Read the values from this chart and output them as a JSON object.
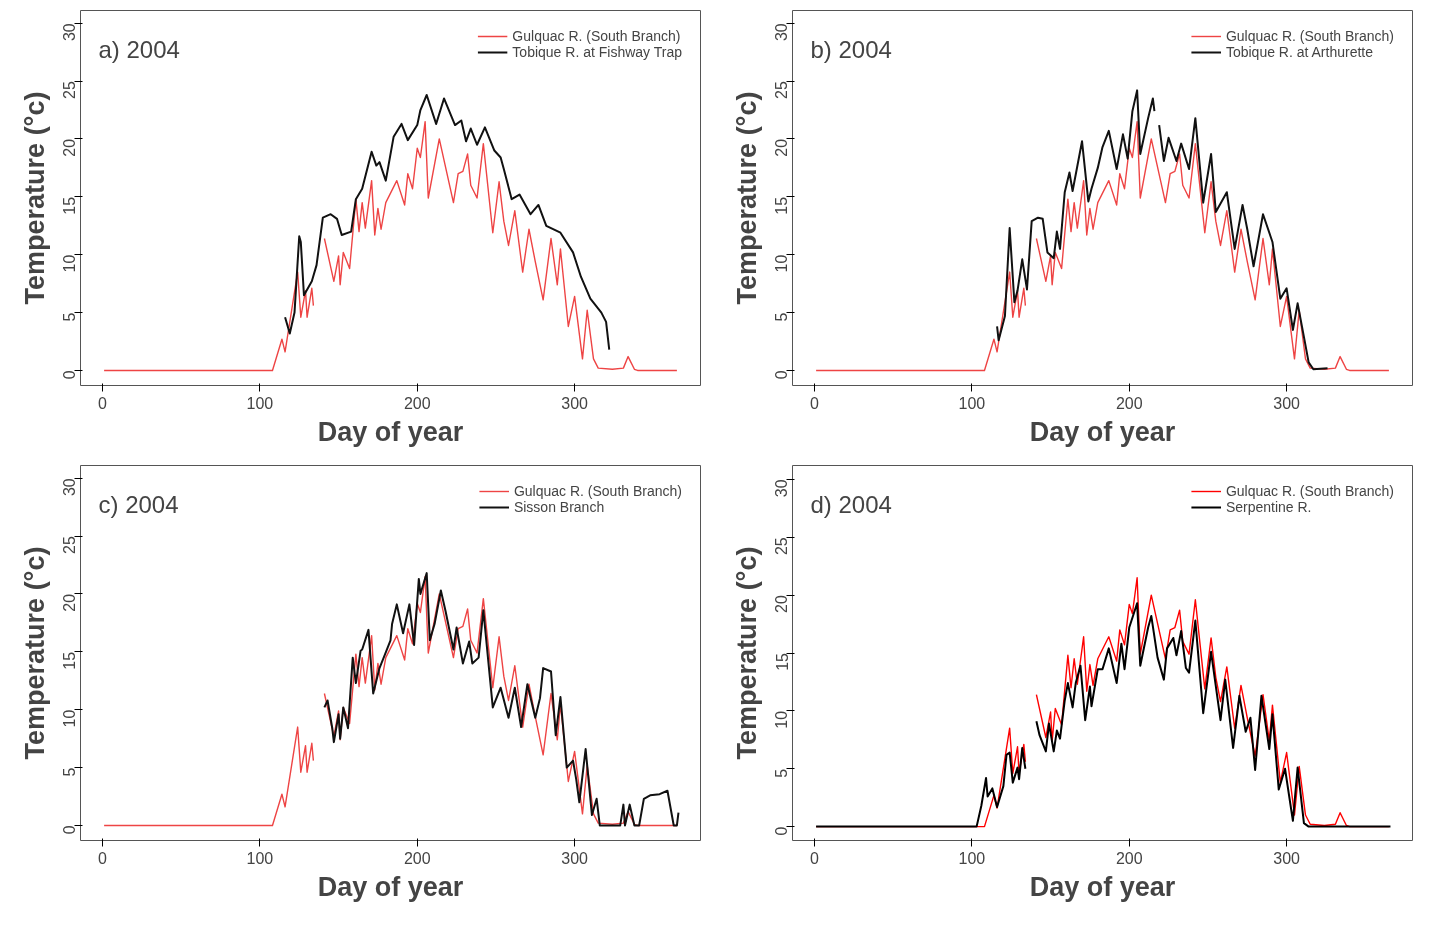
{
  "chart_data": [
    {
      "type": "line",
      "title": "a) 2004",
      "xlabel": "Day of year",
      "ylabel": "Temperature (°c)",
      "xlim": [
        -14,
        380
      ],
      "ylim": [
        -1.3,
        31.1
      ],
      "xticks": [
        0,
        100,
        200,
        300
      ],
      "yticks": [
        0,
        5,
        10,
        15,
        20,
        25,
        30
      ],
      "grid": false,
      "legend": "top right",
      "series": [
        {
          "name": "Gulquac R. (South Branch)",
          "color": "#ee4444",
          "x": [
            1,
            108,
            114,
            116,
            124,
            126,
            129,
            130,
            133,
            134,
            137,
            141,
            147,
            150,
            151,
            153,
            157,
            161,
            163,
            165,
            167,
            171,
            173,
            175,
            177,
            180,
            187,
            192,
            194,
            197,
            200,
            202,
            205,
            207,
            214,
            223,
            226,
            229,
            232,
            234,
            238,
            242,
            248,
            252,
            255,
            258,
            262,
            267,
            271,
            275,
            280,
            285,
            289,
            291,
            296,
            300,
            305,
            308,
            312,
            315,
            324,
            331,
            334,
            338,
            340,
            365
          ],
          "values": [
            0,
            0,
            2.7,
            1.6,
            8.5,
            4.6,
            6.9,
            4.6,
            7.1,
            5.6,
            null,
            11.4,
            7.7,
            9.9,
            7.4,
            10.2,
            8.8,
            14.8,
            12.0,
            14.5,
            12.3,
            16.4,
            11.7,
            14.0,
            12.2,
            14.5,
            16.4,
            14.3,
            17.0,
            15.7,
            19.2,
            18.4,
            21.5,
            14.9,
            20.0,
            14.5,
            17.0,
            17.2,
            18.7,
            16.0,
            14.9,
            19.6,
            11.9,
            16.3,
            12.9,
            10.8,
            13.8,
            8.5,
            12.2,
            9.4,
            6.1,
            11.4,
            7.4,
            10.5,
            3.8,
            6.4,
            1.0,
            5.2,
            1.0,
            0.2,
            0.1,
            0.2,
            1.2,
            0.1,
            0,
            0
          ]
        },
        {
          "name": "Tobique R. at Fishway Trap",
          "color": "#111111",
          "x": [
            116,
            119,
            122,
            125,
            126,
            128,
            133,
            136,
            140,
            145,
            149,
            152,
            158,
            161,
            165,
            171,
            174,
            176,
            180,
            185,
            190,
            194,
            200,
            202,
            206,
            212,
            217,
            224,
            228,
            231,
            234,
            238,
            243,
            249,
            253,
            255,
            260,
            265,
            272,
            277,
            282,
            291,
            299,
            304,
            310,
            317,
            320,
            322
          ],
          "values": [
            4.6,
            3.2,
            5.0,
            11.6,
            11.1,
            6.5,
            7.7,
            9.1,
            13.2,
            13.5,
            13.1,
            11.7,
            12.0,
            14.8,
            15.7,
            18.9,
            17.7,
            18.0,
            16.4,
            20.2,
            21.3,
            19.9,
            21.2,
            22.5,
            23.8,
            21.3,
            23.5,
            21.2,
            21.6,
            19.8,
            20.9,
            19.5,
            21.0,
            19.0,
            18.4,
            17.4,
            14.8,
            15.2,
            13.5,
            14.3,
            12.5,
            11.9,
            10.2,
            8.1,
            6.2,
            5.0,
            4.2,
            1.8
          ]
        }
      ]
    },
    {
      "type": "line",
      "title": "b) 2004",
      "xlabel": "Day of year",
      "ylabel": "Temperature (°c)",
      "xlim": [
        -14,
        380
      ],
      "ylim": [
        -1.3,
        31.1
      ],
      "xticks": [
        0,
        100,
        200,
        300
      ],
      "yticks": [
        0,
        5,
        10,
        15,
        20,
        25,
        30
      ],
      "grid": false,
      "legend": "top right",
      "series": [
        {
          "name": "Gulquac R. (South Branch)",
          "color": "#ee4444",
          "x": [
            1,
            108,
            114,
            116,
            124,
            126,
            129,
            130,
            133,
            134,
            137,
            141,
            147,
            150,
            151,
            153,
            157,
            161,
            163,
            165,
            167,
            171,
            173,
            175,
            177,
            180,
            187,
            192,
            194,
            197,
            200,
            202,
            205,
            207,
            214,
            223,
            226,
            229,
            232,
            234,
            238,
            242,
            248,
            252,
            255,
            258,
            262,
            267,
            271,
            275,
            280,
            285,
            289,
            291,
            296,
            300,
            305,
            308,
            312,
            315,
            324,
            331,
            334,
            338,
            340,
            365
          ],
          "values": [
            0,
            0,
            2.7,
            1.6,
            8.5,
            4.6,
            6.9,
            4.6,
            7.1,
            5.6,
            null,
            11.4,
            7.7,
            9.9,
            7.4,
            10.2,
            8.8,
            14.8,
            12.0,
            14.5,
            12.3,
            16.4,
            11.7,
            14.0,
            12.2,
            14.5,
            16.4,
            14.3,
            17.0,
            15.7,
            19.2,
            18.4,
            21.5,
            14.9,
            20.0,
            14.5,
            17.0,
            17.2,
            18.7,
            16.0,
            14.9,
            19.6,
            11.9,
            16.3,
            12.9,
            10.8,
            13.8,
            8.5,
            12.2,
            9.4,
            6.1,
            11.4,
            7.4,
            10.5,
            3.8,
            6.4,
            1.0,
            5.2,
            1.0,
            0.2,
            0.1,
            0.2,
            1.2,
            0.1,
            0,
            0
          ]
        },
        {
          "name": "Tobique R. at Arthurette",
          "color": "#111111",
          "x": [
            116,
            117,
            121,
            124,
            127,
            129,
            132,
            135,
            138,
            142,
            145,
            148,
            152,
            154,
            156,
            159,
            162,
            164,
            170,
            174,
            176,
            180,
            183,
            187,
            192,
            196,
            199,
            202,
            205,
            207,
            212,
            215,
            216,
            217,
            219,
            222,
            225,
            230,
            233,
            238,
            242,
            247,
            252,
            255,
            262,
            267,
            272,
            275,
            279,
            285,
            291,
            296,
            300,
            304,
            307,
            311,
            314,
            317,
            326
          ],
          "values": [
            3.8,
            2.6,
            4.7,
            12.3,
            5.9,
            6.9,
            9.6,
            7.0,
            12.9,
            13.2,
            13.1,
            10.2,
            9.7,
            12.0,
            10.5,
            15.4,
            17.1,
            15.5,
            19.8,
            14.6,
            15.7,
            17.5,
            19.3,
            20.7,
            17.4,
            20.4,
            18.3,
            22.4,
            24.2,
            18.7,
            21.8,
            23.5,
            22.4,
            null,
            21.2,
            18.1,
            20.1,
            18.1,
            19.6,
            17.4,
            21.8,
            14.5,
            18.7,
            13.7,
            15.4,
            10.5,
            14.3,
            12.2,
            9.0,
            13.5,
            11.1,
            6.2,
            7.1,
            3.5,
            5.8,
            2.9,
            0.7,
            0.1,
            0.2
          ]
        }
      ]
    },
    {
      "type": "line",
      "title": "c) 2004",
      "xlabel": "Day of year",
      "ylabel": "Temperature (°c)",
      "xlim": [
        -14,
        380
      ],
      "ylim": [
        -1.3,
        31.1
      ],
      "xticks": [
        0,
        100,
        200,
        300
      ],
      "yticks": [
        0,
        5,
        10,
        15,
        20,
        25,
        30
      ],
      "grid": false,
      "legend": "top right",
      "series": [
        {
          "name": "Gulquac R. (South Branch)",
          "color": "#ee4444",
          "x": [
            1,
            108,
            114,
            116,
            124,
            126,
            129,
            130,
            133,
            134,
            137,
            141,
            147,
            150,
            151,
            153,
            157,
            161,
            163,
            165,
            167,
            171,
            173,
            175,
            177,
            180,
            187,
            192,
            194,
            197,
            200,
            202,
            205,
            207,
            214,
            223,
            226,
            229,
            232,
            234,
            238,
            242,
            248,
            252,
            255,
            258,
            262,
            267,
            271,
            275,
            280,
            285,
            289,
            291,
            296,
            300,
            305,
            308,
            312,
            315,
            324,
            331,
            334,
            338,
            340,
            365
          ],
          "values": [
            0,
            0,
            2.7,
            1.6,
            8.5,
            4.6,
            6.9,
            4.6,
            7.1,
            5.6,
            null,
            11.4,
            7.7,
            9.9,
            7.4,
            10.2,
            8.8,
            14.8,
            12.0,
            14.5,
            12.3,
            16.4,
            11.7,
            14.0,
            12.2,
            14.5,
            16.4,
            14.3,
            17.0,
            15.7,
            19.2,
            18.4,
            21.5,
            14.9,
            20.0,
            14.5,
            17.0,
            17.2,
            18.7,
            16.0,
            14.9,
            19.6,
            11.9,
            16.3,
            12.9,
            10.8,
            13.8,
            8.5,
            12.2,
            9.4,
            6.1,
            11.4,
            7.4,
            10.5,
            3.8,
            6.4,
            1.0,
            5.2,
            1.0,
            0.2,
            0.1,
            0.2,
            1.2,
            0.1,
            0,
            0
          ]
        },
        {
          "name": "Sisson Branch",
          "color": "#111111",
          "x": [
            141,
            143,
            146,
            147,
            150,
            151,
            153,
            156,
            159,
            161,
            164,
            165,
            169,
            172,
            176,
            179,
            183,
            184,
            187,
            191,
            195,
            198,
            201,
            202,
            206,
            208,
            211,
            215,
            218,
            223,
            225,
            229,
            233,
            235,
            239,
            242,
            248,
            253,
            258,
            262,
            266,
            270,
            275,
            278,
            280,
            285,
            288,
            291,
            295,
            299,
            301,
            303,
            307,
            311,
            314,
            316,
            329,
            331,
            332,
            335,
            338,
            341,
            344,
            348,
            354,
            359,
            363,
            365,
            366
          ],
          "values": [
            10.2,
            10.8,
            8.4,
            7.2,
            9.6,
            7.5,
            10.2,
            8.4,
            14.5,
            12.3,
            15.1,
            15.2,
            16.9,
            11.4,
            13.6,
            14.6,
            16.0,
            17.4,
            19.1,
            16.6,
            19.1,
            15.6,
            21.3,
            20.0,
            21.8,
            16.0,
            17.4,
            20.3,
            18.5,
            15.2,
            17.1,
            14.0,
            15.9,
            14.0,
            14.5,
            18.6,
            10.2,
            11.9,
            9.3,
            11.9,
            8.5,
            12.2,
            9.3,
            11.0,
            13.6,
            13.3,
            7.8,
            11.1,
            5.0,
            5.6,
            4.0,
            2.0,
            6.6,
            0.9,
            2.3,
            0,
            0,
            1.8,
            0,
            1.8,
            0,
            0,
            2.3,
            2.6,
            2.7,
            3.0,
            0,
            0,
            1.1
          ]
        }
      ]
    },
    {
      "type": "line",
      "title": "d) 2004",
      "xlabel": "Day of year",
      "ylabel": "Temperature (°c)",
      "xlim": [
        -14,
        380
      ],
      "ylim": [
        -1.2,
        31.2
      ],
      "xticks": [
        0,
        100,
        200,
        300
      ],
      "yticks": [
        0,
        5,
        10,
        15,
        20,
        25,
        30
      ],
      "grid": false,
      "legend": "top right",
      "series": [
        {
          "name": "Gulquac R. (South Branch)",
          "color": "#ff0000",
          "x": [
            1,
            108,
            114,
            116,
            124,
            126,
            129,
            130,
            133,
            134,
            137,
            141,
            147,
            150,
            151,
            153,
            157,
            161,
            163,
            165,
            167,
            171,
            173,
            175,
            177,
            180,
            187,
            192,
            194,
            197,
            200,
            202,
            205,
            207,
            214,
            223,
            226,
            229,
            232,
            234,
            238,
            242,
            248,
            252,
            255,
            258,
            262,
            267,
            271,
            275,
            280,
            285,
            289,
            291,
            296,
            300,
            305,
            308,
            312,
            315,
            324,
            331,
            334,
            338,
            340,
            365
          ],
          "values": [
            0,
            0,
            2.7,
            1.6,
            8.5,
            4.6,
            6.9,
            4.6,
            7.1,
            5.6,
            null,
            11.4,
            7.7,
            9.9,
            7.4,
            10.2,
            8.8,
            14.8,
            12.0,
            14.5,
            12.3,
            16.4,
            11.7,
            14.0,
            12.2,
            14.5,
            16.4,
            14.3,
            17.0,
            15.7,
            19.2,
            18.4,
            21.5,
            14.9,
            20.0,
            14.5,
            17.0,
            17.2,
            18.7,
            16.0,
            14.9,
            19.6,
            11.9,
            16.3,
            12.9,
            10.8,
            13.8,
            8.5,
            12.2,
            9.4,
            6.1,
            11.4,
            7.4,
            10.5,
            3.8,
            6.4,
            1.0,
            5.2,
            1.0,
            0.2,
            0.1,
            0.2,
            1.2,
            0.1,
            0,
            0
          ]
        },
        {
          "name": "Serpentine R.",
          "color": "#000000",
          "x": [
            1,
            103,
            106,
            109,
            110,
            113,
            116,
            120,
            122,
            124,
            126,
            129,
            130,
            132,
            134,
            137,
            141,
            143,
            147,
            149,
            152,
            154,
            156,
            159,
            161,
            164,
            166,
            169,
            172,
            175,
            176,
            180,
            183,
            187,
            192,
            195,
            197,
            200,
            205,
            207,
            212,
            214,
            218,
            222,
            224,
            228,
            230,
            233,
            236,
            238,
            242,
            247,
            252,
            258,
            261,
            266,
            270,
            274,
            277,
            280,
            284,
            289,
            291,
            295,
            299,
            304,
            307,
            311,
            314,
            366
          ],
          "values": [
            0,
            0,
            1.8,
            4.2,
            2.6,
            3.3,
            1.7,
            3.5,
            6.2,
            6.4,
            3.8,
            5.1,
            4.1,
            6.8,
            5.0,
            null,
            9.1,
            7.9,
            6.5,
            8.9,
            6.5,
            8.3,
            7.6,
            10.9,
            12.4,
            10.3,
            12.4,
            13.9,
            9.2,
            12.1,
            10.4,
            13.6,
            13.6,
            15.4,
            12.4,
            15.8,
            13.6,
            17.2,
            19.3,
            13.9,
            17.2,
            18.2,
            14.6,
            12.7,
            15.4,
            16.3,
            14.8,
            16.9,
            13.7,
            13.3,
            17.8,
            9.8,
            15.1,
            9.2,
            12.7,
            6.8,
            11.3,
            8.2,
            9.4,
            4.9,
            11.3,
            6.7,
            9.7,
            3.2,
            5.0,
            0.5,
            5.1,
            0.3,
            0,
            0
          ]
        }
      ]
    }
  ]
}
